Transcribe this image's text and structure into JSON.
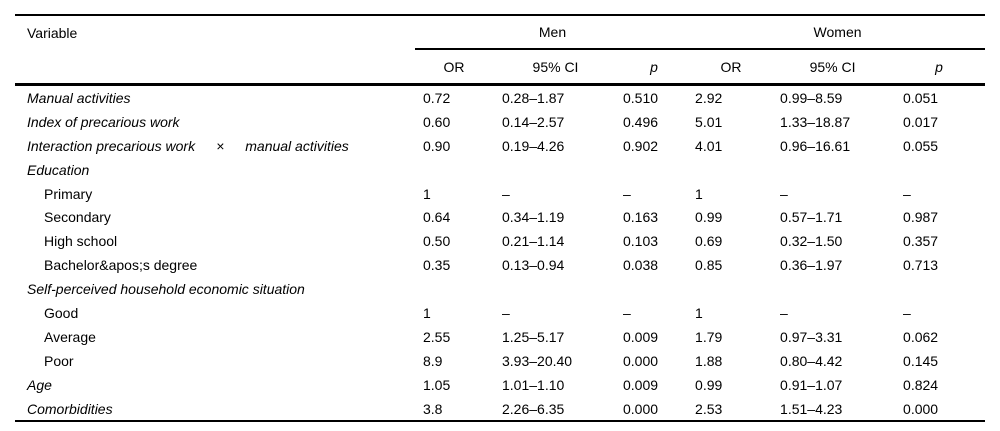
{
  "page": {
    "background_color": "#ffffff",
    "text_color": "#000000",
    "rule_color": "#000000"
  },
  "table": {
    "variable_header": "Variable",
    "group_headers": {
      "men": "Men",
      "women": "Women"
    },
    "sub_headers": {
      "or": "OR",
      "ci": "95% CI",
      "p": "p"
    },
    "rows": [
      {
        "label": "Manual activities",
        "italic": true,
        "indent": false,
        "values": [
          "0.72",
          "0.28–1.87",
          "0.510",
          "2.92",
          "0.99–8.59",
          "0.051"
        ]
      },
      {
        "label": "Index of precarious work",
        "italic": true,
        "indent": false,
        "values": [
          "0.60",
          "0.14–2.57",
          "0.496",
          "5.01",
          "1.33–18.87",
          "0.017"
        ]
      },
      {
        "label": "Interaction precarious work   ×   manual activities",
        "italic": true,
        "indent": false,
        "values": [
          "0.90",
          "0.19–4.26",
          "0.902",
          "4.01",
          "0.96–16.61",
          "0.055"
        ]
      },
      {
        "label": "Education",
        "italic": true,
        "indent": false,
        "values": [
          "",
          "",
          "",
          "",
          "",
          ""
        ]
      },
      {
        "label": "Primary",
        "italic": false,
        "indent": true,
        "values": [
          "1",
          "–",
          "–",
          "1",
          "–",
          "–"
        ]
      },
      {
        "label": "Secondary",
        "italic": false,
        "indent": true,
        "values": [
          "0.64",
          "0.34–1.19",
          "0.163",
          "0.99",
          "0.57–1.71",
          "0.987"
        ]
      },
      {
        "label": "High school",
        "italic": false,
        "indent": true,
        "values": [
          "0.50",
          "0.21–1.14",
          "0.103",
          "0.69",
          "0.32–1.50",
          "0.357"
        ]
      },
      {
        "label": "Bachelor&apos;s degree",
        "italic": false,
        "indent": true,
        "values": [
          "0.35",
          "0.13–0.94",
          "0.038",
          "0.85",
          "0.36–1.97",
          "0.713"
        ]
      },
      {
        "label": "Self-perceived household economic situation",
        "italic": true,
        "indent": false,
        "values": [
          "",
          "",
          "",
          "",
          "",
          ""
        ]
      },
      {
        "label": "Good",
        "italic": false,
        "indent": true,
        "values": [
          "1",
          "–",
          "–",
          "1",
          "–",
          "–"
        ]
      },
      {
        "label": "Average",
        "italic": false,
        "indent": true,
        "values": [
          "2.55",
          "1.25–5.17",
          "0.009",
          "1.79",
          "0.97–3.31",
          "0.062"
        ]
      },
      {
        "label": "Poor",
        "italic": false,
        "indent": true,
        "values": [
          "8.9",
          "3.93–20.40",
          "0.000",
          "1.88",
          "0.80–4.42",
          "0.145"
        ]
      },
      {
        "label": "Age",
        "italic": true,
        "indent": false,
        "values": [
          "1.05",
          "1.01–1.10",
          "0.009",
          "0.99",
          "0.91–1.07",
          "0.824"
        ]
      },
      {
        "label": "Comorbidities",
        "italic": true,
        "indent": false,
        "values": [
          "3.8",
          "2.26–6.35",
          "0.000",
          "2.53",
          "1.51–4.23",
          "0.000"
        ]
      }
    ]
  }
}
